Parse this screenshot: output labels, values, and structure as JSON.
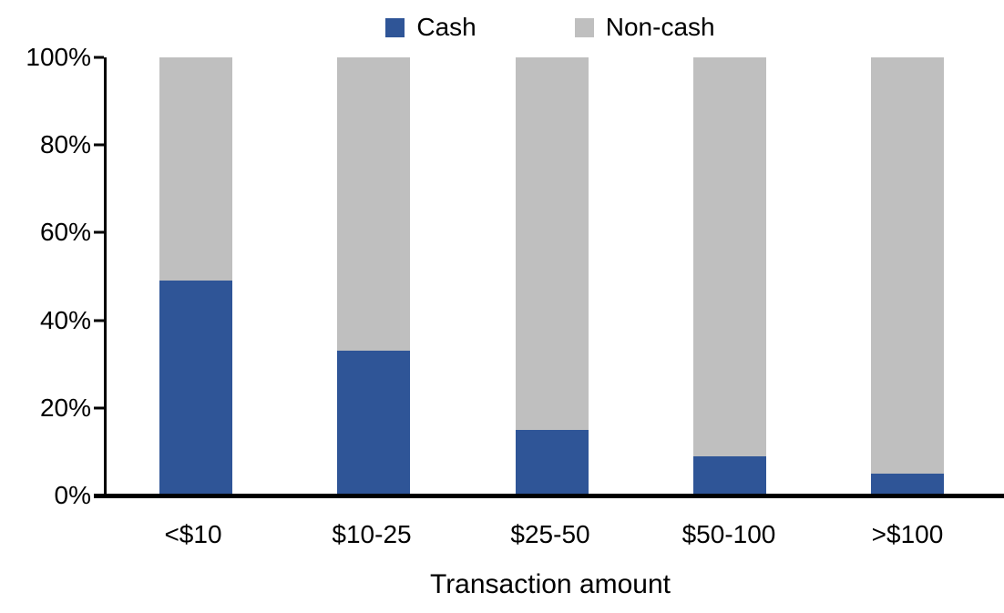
{
  "chart_data": {
    "type": "bar",
    "stacked": true,
    "percent_stacked": true,
    "title": "",
    "xlabel": "Transaction amount",
    "ylabel": "",
    "categories": [
      "<$10",
      "$10-25",
      "$25-50",
      "$50-100",
      ">$100"
    ],
    "series": [
      {
        "name": "Cash",
        "color": "#2F5597",
        "values": [
          49,
          33,
          15,
          9,
          5
        ]
      },
      {
        "name": "Non-cash",
        "color": "#BFBFBF",
        "values": [
          51,
          67,
          85,
          91,
          95
        ]
      }
    ],
    "y_ticks": [
      "0%",
      "20%",
      "40%",
      "60%",
      "80%",
      "100%"
    ],
    "ylim": [
      0,
      100
    ],
    "legend_position": "top",
    "grid": false,
    "axis_color": "#000000"
  }
}
